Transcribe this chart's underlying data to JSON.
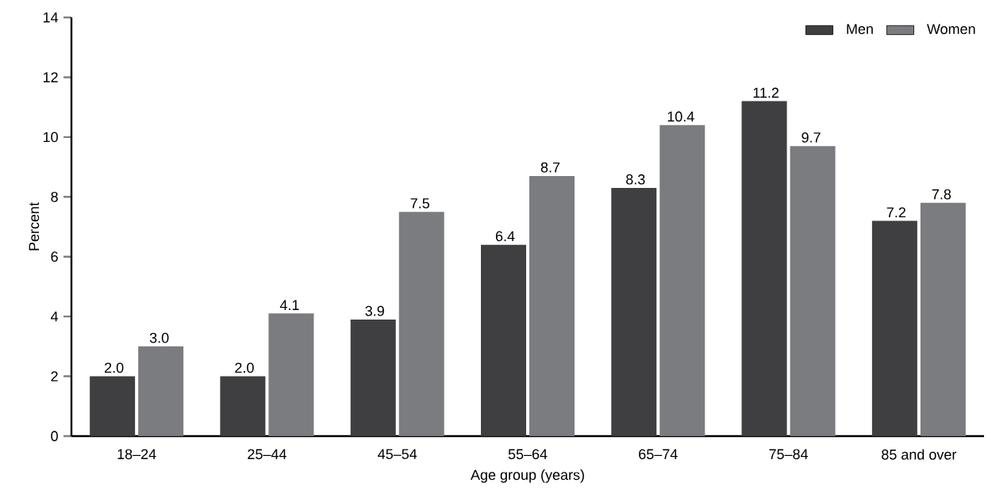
{
  "chart_data": {
    "type": "bar",
    "xlabel": "Age group (years)",
    "ylabel": "Percent",
    "categories": [
      "18–24",
      "25–44",
      "45–54",
      "55–64",
      "65–74",
      "75–84",
      "85 and over"
    ],
    "series": [
      {
        "name": "Men",
        "color": "#3f3f41",
        "values": [
          2.0,
          2.0,
          3.9,
          6.4,
          8.3,
          11.2,
          7.2
        ],
        "value_labels": [
          "2.0",
          "2.0",
          "3.9",
          "6.4",
          "8.3",
          "11.2",
          "7.2"
        ]
      },
      {
        "name": "Women",
        "color": "#7b7c80",
        "values": [
          3.0,
          4.1,
          7.5,
          8.7,
          10.4,
          9.7,
          7.8
        ],
        "value_labels": [
          "3.0",
          "4.1",
          "7.5",
          "8.7",
          "10.4",
          "9.7",
          "7.8"
        ]
      }
    ],
    "ylim": [
      0,
      14
    ],
    "yticks": [
      0,
      2,
      4,
      6,
      8,
      10,
      12,
      14
    ],
    "grid": false,
    "legend": "top right"
  }
}
